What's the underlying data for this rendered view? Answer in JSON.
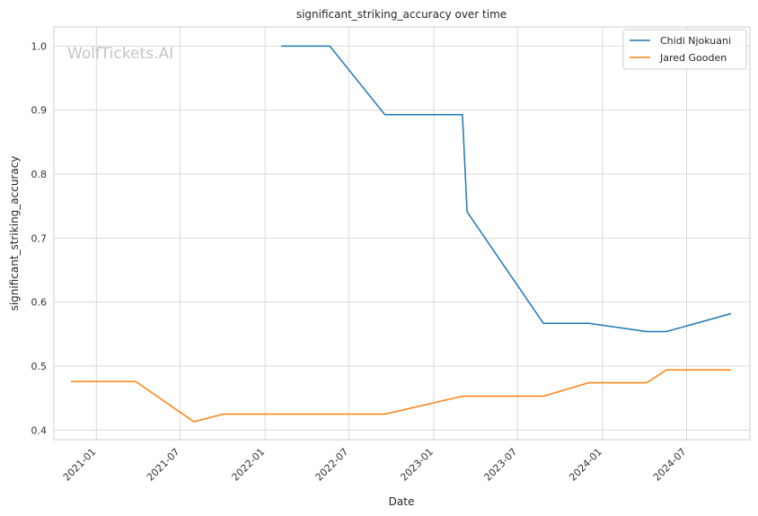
{
  "chart_data": {
    "type": "line",
    "title": "significant_striking_accuracy over time",
    "xlabel": "Date",
    "ylabel": "significant_striking_accuracy",
    "watermark": "WolfTickets.AI",
    "x_axis_type": "date",
    "xlim": [
      "2020-10-01",
      "2024-11-15"
    ],
    "ylim": [
      0.385,
      1.03
    ],
    "x_ticks": [
      "2021-01",
      "2021-07",
      "2022-01",
      "2022-07",
      "2023-01",
      "2023-07",
      "2024-01",
      "2024-07"
    ],
    "y_ticks": [
      0.4,
      0.5,
      0.6,
      0.7,
      0.8,
      0.9,
      1.0
    ],
    "y_tick_labels": [
      "0.4",
      "0.5",
      "0.6",
      "0.7",
      "0.8",
      "0.9",
      "1.0"
    ],
    "grid": true,
    "legend_position": "top-right",
    "series": [
      {
        "name": "Chidi Njokuani",
        "color": "#1f77b4",
        "points": [
          {
            "x": "2022-02-05",
            "y": 1.0
          },
          {
            "x": "2022-05-21",
            "y": 1.0
          },
          {
            "x": "2022-09-17",
            "y": 0.893
          },
          {
            "x": "2023-03-04",
            "y": 0.893
          },
          {
            "x": "2023-03-14",
            "y": 0.741
          },
          {
            "x": "2023-08-26",
            "y": 0.567
          },
          {
            "x": "2023-12-02",
            "y": 0.567
          },
          {
            "x": "2024-04-06",
            "y": 0.554
          },
          {
            "x": "2024-05-18",
            "y": 0.554
          },
          {
            "x": "2024-10-05",
            "y": 0.582
          }
        ]
      },
      {
        "name": "Jared Gooden",
        "color": "#ff7f0e",
        "points": [
          {
            "x": "2020-11-07",
            "y": 0.476
          },
          {
            "x": "2021-03-27",
            "y": 0.476
          },
          {
            "x": "2021-07-31",
            "y": 0.413
          },
          {
            "x": "2021-10-02",
            "y": 0.425
          },
          {
            "x": "2022-09-17",
            "y": 0.425
          },
          {
            "x": "2023-03-04",
            "y": 0.453
          },
          {
            "x": "2023-08-26",
            "y": 0.453
          },
          {
            "x": "2023-12-02",
            "y": 0.474
          },
          {
            "x": "2024-04-06",
            "y": 0.474
          },
          {
            "x": "2024-05-18",
            "y": 0.494
          },
          {
            "x": "2024-10-05",
            "y": 0.494
          }
        ]
      }
    ]
  }
}
